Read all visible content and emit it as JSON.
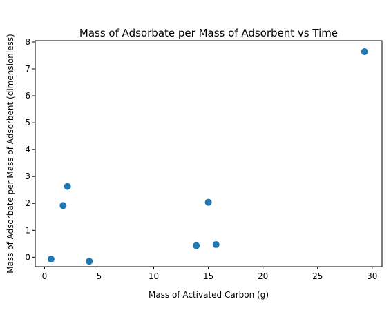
{
  "chart_data": {
    "type": "scatter",
    "title": "Mass of Adsorbate per Mass of Adsorbent vs Time",
    "xlabel": "Mass of Activated Carbon (g)",
    "ylabel": "Mass of Adsorbate per Mass of Adsorbent (dimensionless)",
    "xlim": [
      -0.85,
      30.9
    ],
    "ylim": [
      -0.35,
      8.05
    ],
    "xticks": [
      0,
      5,
      10,
      15,
      20,
      25,
      30
    ],
    "yticks": [
      0,
      1,
      2,
      3,
      4,
      5,
      6,
      7,
      8
    ],
    "grid": false,
    "marker_color": "#1f77b4",
    "points": [
      {
        "x": 0.6,
        "y": -0.07
      },
      {
        "x": 1.7,
        "y": 1.92
      },
      {
        "x": 2.1,
        "y": 2.63
      },
      {
        "x": 4.1,
        "y": -0.15
      },
      {
        "x": 13.9,
        "y": 0.43
      },
      {
        "x": 15.0,
        "y": 2.04
      },
      {
        "x": 15.7,
        "y": 0.47
      },
      {
        "x": 29.3,
        "y": 7.64
      }
    ]
  }
}
